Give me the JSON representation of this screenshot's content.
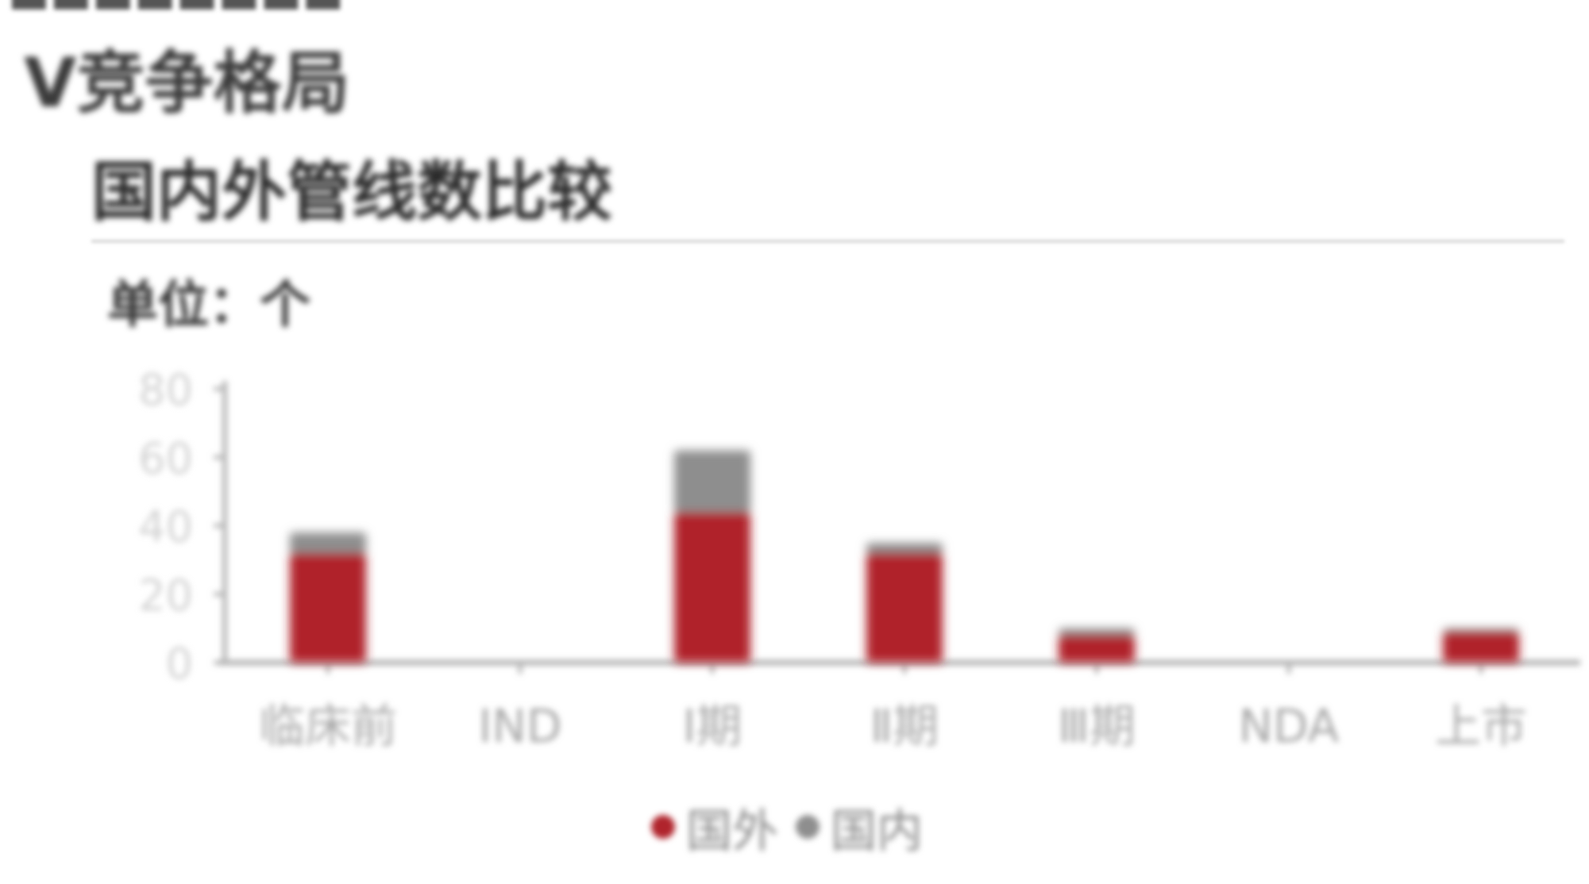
{
  "header": {
    "section_title": "Ⅴ竞争格局",
    "chart_title": "国内外管线数比较",
    "unit_label": "单位：个"
  },
  "colors": {
    "foreign": "#b0242c",
    "domestic": "#8e8e8e"
  },
  "chart_data": {
    "type": "bar",
    "stacked": true,
    "title": "国内外管线数比较",
    "unit": "单位：个",
    "categories": [
      "临床前",
      "IND",
      "Ⅰ期",
      "Ⅱ期",
      "Ⅲ期",
      "NDA",
      "上市"
    ],
    "series": [
      {
        "name": "国外",
        "values": [
          32,
          0,
          44,
          32,
          8,
          0,
          9
        ]
      },
      {
        "name": "国内",
        "values": [
          6,
          0,
          18,
          3,
          2,
          0,
          1
        ]
      }
    ],
    "y_ticks": [
      0,
      20,
      40,
      60,
      80
    ],
    "ylim": [
      0,
      80
    ],
    "grid": false,
    "legend_position": "bottom"
  }
}
